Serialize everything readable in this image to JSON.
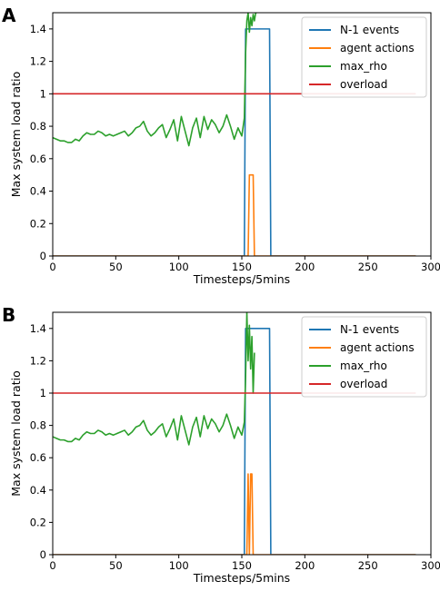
{
  "chart_data": [
    {
      "panel": "A",
      "type": "line",
      "xlabel": "Timesteps/5mins",
      "ylabel": "Max system load ratio",
      "xlim": [
        0,
        300
      ],
      "ylim": [
        0,
        1.5
      ],
      "xticks": [
        0,
        50,
        100,
        150,
        200,
        250,
        300
      ],
      "yticks": [
        0.0,
        0.2,
        0.4,
        0.6,
        0.8,
        1.0,
        1.2,
        1.4
      ],
      "grid": false,
      "legend_position": "top-right",
      "colors": {
        "n1": "#1f77b4",
        "agent": "#ff7f0e",
        "maxrho": "#2ca02c",
        "overload": "#d62728"
      },
      "series": [
        {
          "name": "N-1 events",
          "x": [
            0,
            152,
            153,
            172,
            173,
            288
          ],
          "y": [
            0,
            0,
            1.4,
            1.4,
            0,
            0
          ]
        },
        {
          "name": "agent actions",
          "x": [
            0,
            155,
            156,
            159,
            160,
            288
          ],
          "y": [
            0,
            0,
            0.5,
            0.5,
            0,
            0
          ]
        },
        {
          "name": "max_rho",
          "x": [
            0,
            3,
            6,
            9,
            12,
            15,
            18,
            21,
            24,
            27,
            30,
            33,
            36,
            39,
            42,
            45,
            48,
            51,
            54,
            57,
            60,
            63,
            66,
            69,
            72,
            75,
            78,
            81,
            84,
            87,
            90,
            93,
            96,
            99,
            102,
            105,
            108,
            111,
            114,
            117,
            120,
            123,
            126,
            129,
            132,
            135,
            138,
            141,
            144,
            147,
            150,
            152,
            153,
            154,
            155,
            156,
            157,
            158,
            159,
            160,
            161,
            162
          ],
          "y": [
            0.73,
            0.72,
            0.71,
            0.71,
            0.7,
            0.7,
            0.72,
            0.71,
            0.74,
            0.76,
            0.75,
            0.75,
            0.77,
            0.76,
            0.74,
            0.75,
            0.74,
            0.75,
            0.76,
            0.77,
            0.74,
            0.76,
            0.79,
            0.8,
            0.83,
            0.77,
            0.74,
            0.76,
            0.79,
            0.81,
            0.73,
            0.78,
            0.84,
            0.71,
            0.86,
            0.77,
            0.68,
            0.79,
            0.85,
            0.73,
            0.86,
            0.78,
            0.84,
            0.81,
            0.76,
            0.8,
            0.87,
            0.8,
            0.72,
            0.79,
            0.74,
            0.85,
            1.25,
            1.45,
            1.5,
            1.38,
            1.47,
            1.42,
            1.49,
            1.45,
            1.5,
            1.5
          ]
        },
        {
          "name": "overload",
          "x": [
            0,
            288
          ],
          "y": [
            1.0,
            1.0
          ]
        }
      ]
    },
    {
      "panel": "B",
      "type": "line",
      "xlabel": "Timesteps/5mins",
      "ylabel": "Max system load ratio",
      "xlim": [
        0,
        300
      ],
      "ylim": [
        0,
        1.5
      ],
      "xticks": [
        0,
        50,
        100,
        150,
        200,
        250,
        300
      ],
      "yticks": [
        0.0,
        0.2,
        0.4,
        0.6,
        0.8,
        1.0,
        1.2,
        1.4
      ],
      "grid": false,
      "legend_position": "top-right",
      "colors": {
        "n1": "#1f77b4",
        "agent": "#ff7f0e",
        "maxrho": "#2ca02c",
        "overload": "#d62728"
      },
      "series": [
        {
          "name": "N-1 events",
          "x": [
            0,
            152,
            153,
            172,
            173,
            288
          ],
          "y": [
            0,
            0,
            1.4,
            1.4,
            0,
            0
          ]
        },
        {
          "name": "agent actions",
          "x": [
            0,
            154,
            155,
            156,
            157,
            158,
            159,
            288
          ],
          "y": [
            0,
            0,
            0.5,
            0,
            0.5,
            0.5,
            0,
            0
          ]
        },
        {
          "name": "max_rho",
          "x": [
            0,
            3,
            6,
            9,
            12,
            15,
            18,
            21,
            24,
            27,
            30,
            33,
            36,
            39,
            42,
            45,
            48,
            51,
            54,
            57,
            60,
            63,
            66,
            69,
            72,
            75,
            78,
            81,
            84,
            87,
            90,
            93,
            96,
            99,
            102,
            105,
            108,
            111,
            114,
            117,
            120,
            123,
            126,
            129,
            132,
            135,
            138,
            141,
            144,
            147,
            150,
            152,
            153,
            154,
            155,
            156,
            157,
            158,
            159,
            160
          ],
          "y": [
            0.73,
            0.72,
            0.71,
            0.71,
            0.7,
            0.7,
            0.72,
            0.71,
            0.74,
            0.76,
            0.75,
            0.75,
            0.77,
            0.76,
            0.74,
            0.75,
            0.74,
            0.75,
            0.76,
            0.77,
            0.74,
            0.76,
            0.79,
            0.8,
            0.83,
            0.77,
            0.74,
            0.76,
            0.79,
            0.81,
            0.73,
            0.78,
            0.84,
            0.71,
            0.86,
            0.77,
            0.68,
            0.79,
            0.85,
            0.73,
            0.86,
            0.78,
            0.84,
            0.81,
            0.76,
            0.8,
            0.87,
            0.8,
            0.72,
            0.79,
            0.74,
            0.82,
            1.1,
            1.5,
            1.2,
            1.42,
            1.15,
            1.35,
            1.0,
            1.25
          ]
        },
        {
          "name": "overload",
          "x": [
            0,
            288
          ],
          "y": [
            1.0,
            1.0
          ]
        }
      ]
    }
  ]
}
